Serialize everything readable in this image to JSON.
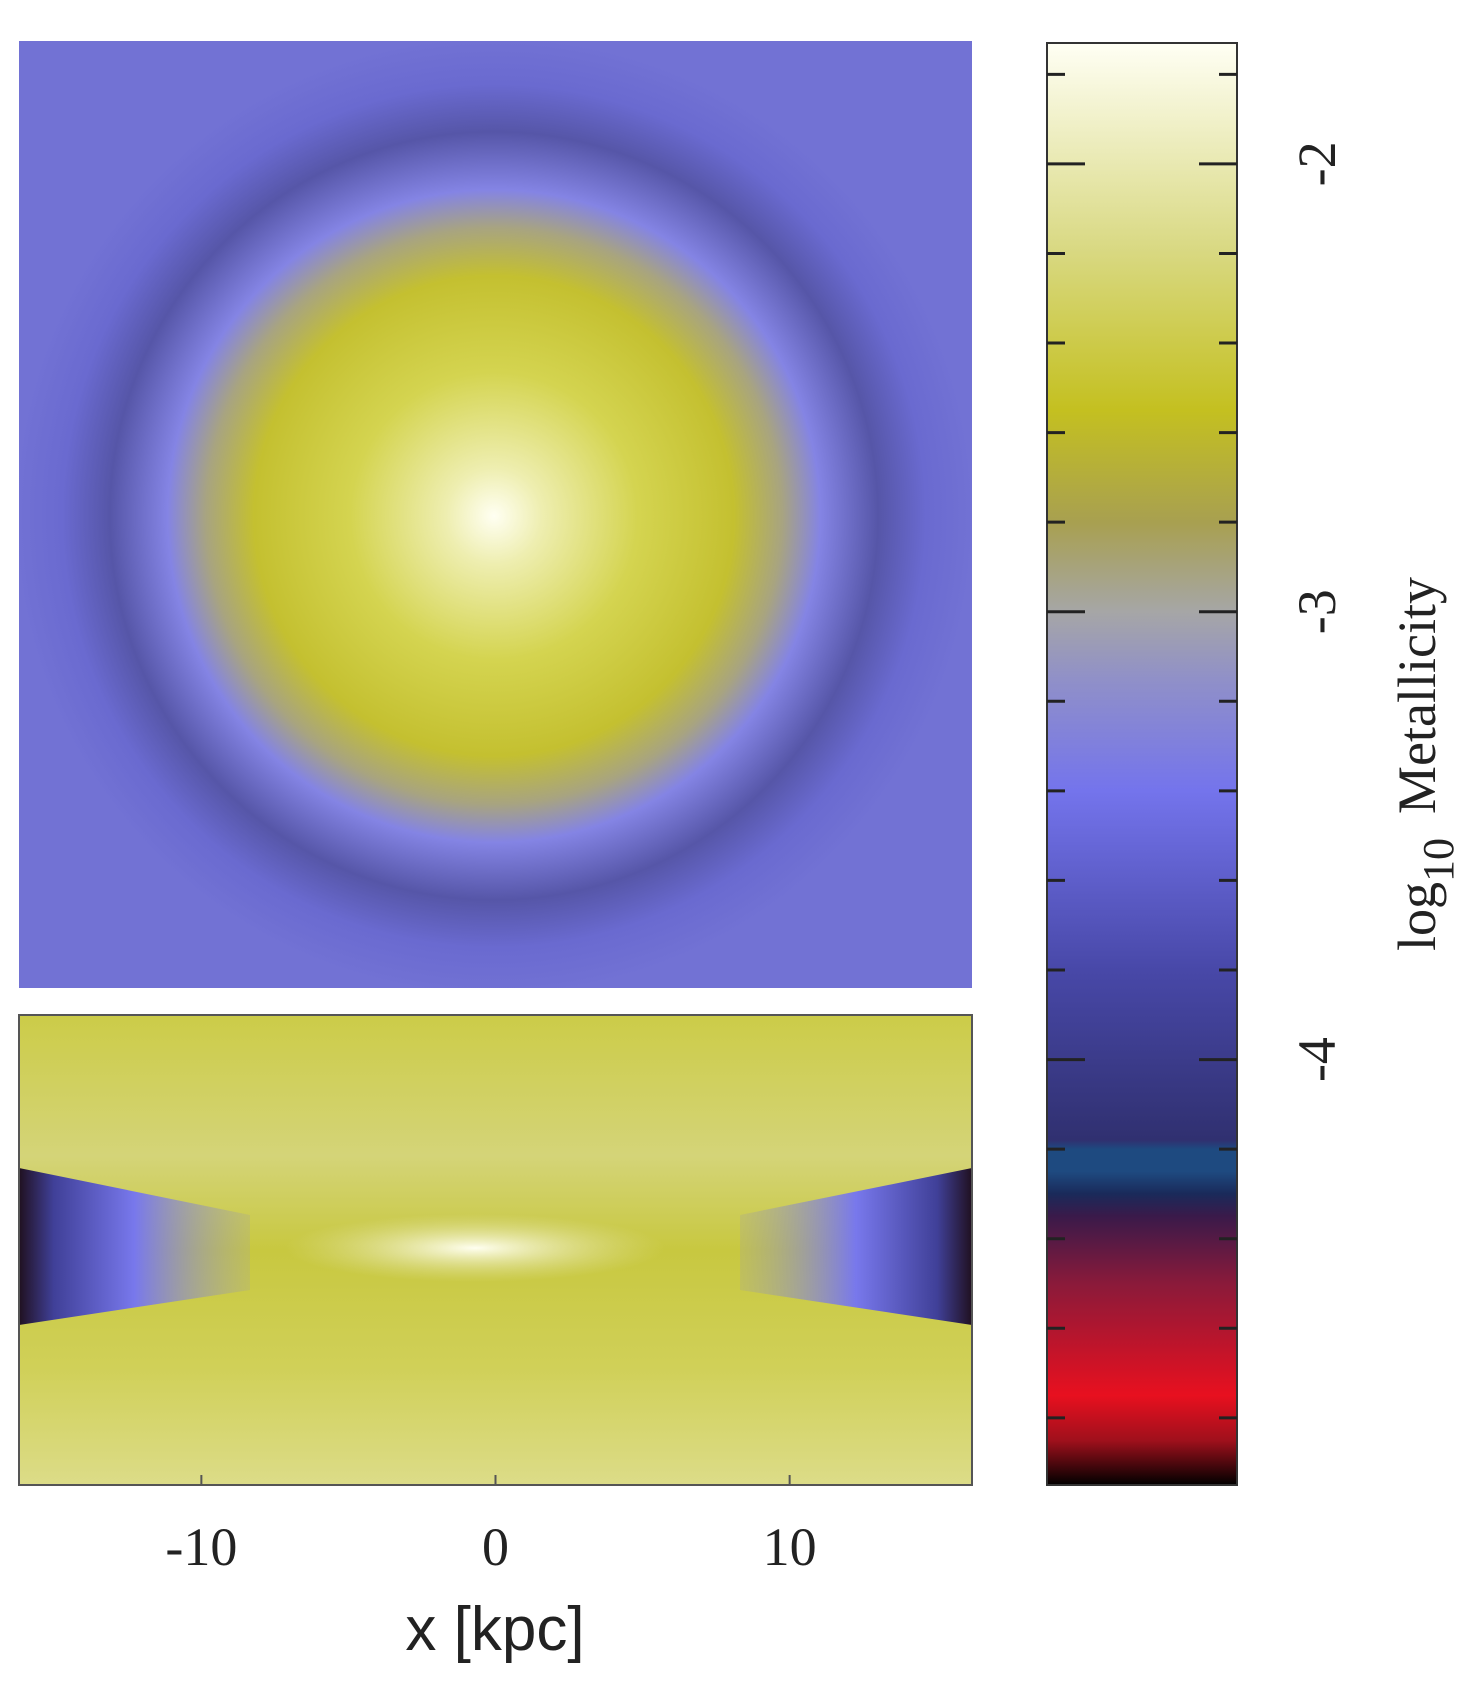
{
  "chart_data": {
    "type": "heatmap",
    "xlabel": "x [kpc]",
    "xlim": [
      -16.2,
      16.2
    ],
    "xticks": [
      -10,
      0,
      10
    ],
    "colorbar": {
      "label_base": "log",
      "label_sub": "10",
      "label_text": "Metallicity",
      "clim": [
        -4.95,
        -1.73
      ],
      "cticks": [
        -4,
        -3,
        -2
      ],
      "minor_ticks": [
        -4.8,
        -4.6,
        -4.4,
        -4.2,
        -3.8,
        -3.6,
        -3.4,
        -3.2,
        -2.8,
        -2.6,
        -2.4,
        -2.2,
        -1.8
      ],
      "colormap": [
        {
          "value": -4.95,
          "color": "#000000"
        },
        {
          "value": -4.85,
          "color": "#a0101c"
        },
        {
          "value": -4.75,
          "color": "#e8101f"
        },
        {
          "value": -4.5,
          "color": "#8a1a3a"
        },
        {
          "value": -4.35,
          "color": "#3a1a4a"
        },
        {
          "value": -4.3,
          "color": "#1a2a5a"
        },
        {
          "value": -4.25,
          "color": "#1e4a80"
        },
        {
          "value": -4.2,
          "color": "#1e4a80"
        },
        {
          "value": -4.18,
          "color": "#303070"
        },
        {
          "value": -3.8,
          "color": "#4848a8"
        },
        {
          "value": -3.4,
          "color": "#7474ec"
        },
        {
          "value": -3.15,
          "color": "#9090c8"
        },
        {
          "value": -3.0,
          "color": "#a6a6a6"
        },
        {
          "value": -2.8,
          "color": "#a8a050"
        },
        {
          "value": -2.55,
          "color": "#c4c020"
        },
        {
          "value": -2.2,
          "color": "#d8d880"
        },
        {
          "value": -1.73,
          "color": "#fffff4"
        }
      ]
    }
  }
}
